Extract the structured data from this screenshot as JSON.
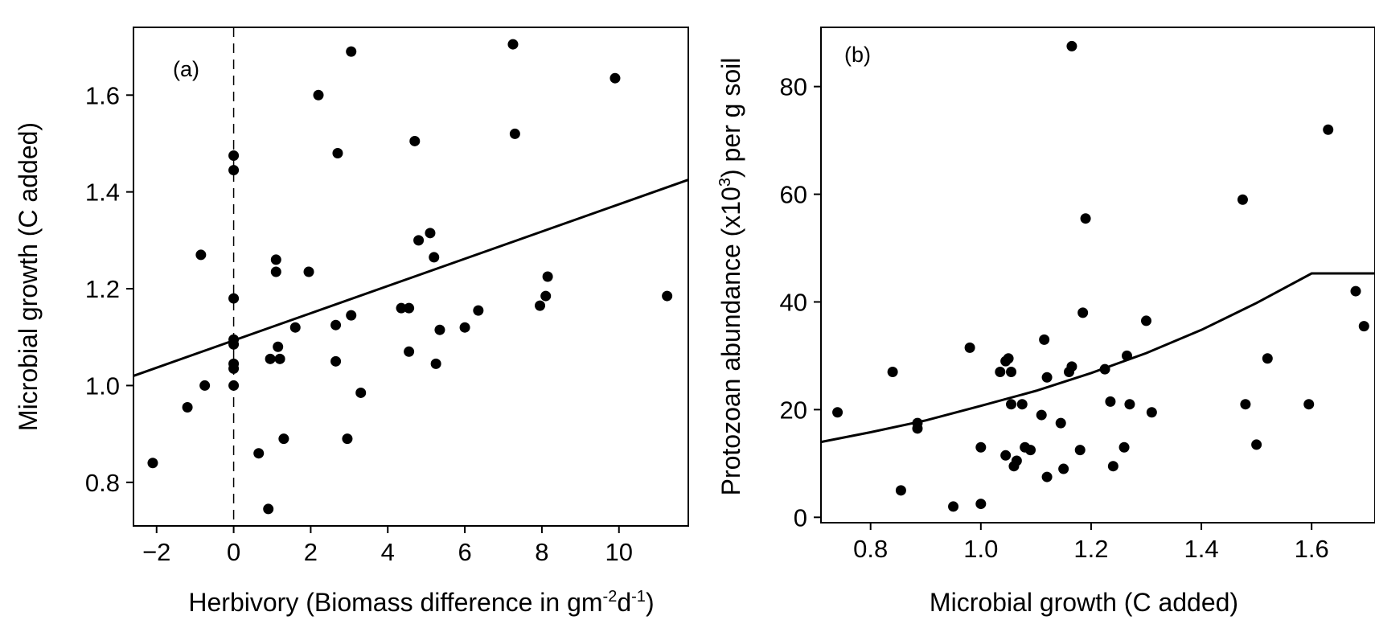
{
  "colors": {
    "ink": "#000000",
    "background": "#ffffff"
  },
  "chart_data": [
    {
      "type": "scatter",
      "panel_label": "(a)",
      "xlabel": "Herbivory (Biomass difference in gm",
      "xlabel_sup1": "-2",
      "xlabel_mid": "d",
      "xlabel_sup2": "-1",
      "xlabel_end": ")",
      "ylabel": "Microbial growth (C added)",
      "xlim": [
        -2.6,
        11.8
      ],
      "ylim": [
        0.71,
        1.74
      ],
      "xticks": [
        -2,
        0,
        2,
        4,
        6,
        8,
        10
      ],
      "xtick_labels": [
        "−2",
        "0",
        "2",
        "4",
        "6",
        "8",
        "10"
      ],
      "yticks": [
        0.8,
        1.0,
        1.2,
        1.4,
        1.6
      ],
      "ytick_labels": [
        "0.8",
        "1.0",
        "1.2",
        "1.4",
        "1.6"
      ],
      "grid": false,
      "reference_line": {
        "axis": "x",
        "value": 0,
        "style": "dashed"
      },
      "fit": {
        "kind": "linear",
        "x": [
          -2.6,
          11.8
        ],
        "y": [
          1.02,
          1.425
        ]
      },
      "points": [
        [
          -2.1,
          0.84
        ],
        [
          -1.2,
          0.955
        ],
        [
          -0.85,
          1.27
        ],
        [
          -0.75,
          1.0
        ],
        [
          0,
          1.475
        ],
        [
          0,
          1.445
        ],
        [
          0,
          1.18
        ],
        [
          0,
          1.095
        ],
        [
          0,
          1.085
        ],
        [
          0,
          1.045
        ],
        [
          0,
          1.035
        ],
        [
          0,
          1.0
        ],
        [
          0.65,
          0.86
        ],
        [
          0.9,
          0.745
        ],
        [
          0.95,
          1.055
        ],
        [
          1.1,
          1.26
        ],
        [
          1.1,
          1.235
        ],
        [
          1.15,
          1.08
        ],
        [
          1.2,
          1.055
        ],
        [
          1.3,
          0.89
        ],
        [
          1.6,
          1.12
        ],
        [
          1.95,
          1.235
        ],
        [
          2.2,
          1.6
        ],
        [
          2.65,
          1.125
        ],
        [
          2.65,
          1.05
        ],
        [
          2.7,
          1.48
        ],
        [
          2.95,
          0.89
        ],
        [
          3.05,
          1.69
        ],
        [
          3.05,
          1.145
        ],
        [
          3.3,
          0.985
        ],
        [
          4.35,
          1.16
        ],
        [
          4.55,
          1.16
        ],
        [
          4.55,
          1.07
        ],
        [
          4.7,
          1.505
        ],
        [
          4.8,
          1.3
        ],
        [
          5.1,
          1.315
        ],
        [
          5.2,
          1.265
        ],
        [
          5.25,
          1.045
        ],
        [
          5.35,
          1.115
        ],
        [
          6.0,
          1.12
        ],
        [
          6.35,
          1.155
        ],
        [
          7.25,
          1.705
        ],
        [
          7.3,
          1.52
        ],
        [
          7.95,
          1.165
        ],
        [
          8.1,
          1.185
        ],
        [
          8.15,
          1.225
        ],
        [
          9.9,
          1.635
        ],
        [
          11.25,
          1.185
        ]
      ]
    },
    {
      "type": "scatter",
      "panel_label": "(b)",
      "xlabel": "Microbial growth (C added)",
      "ylabel": "Protozoan abundance (x10",
      "ylabel_sup": "3",
      "ylabel_end": ") per g soil",
      "xlim": [
        0.71,
        1.715
      ],
      "ylim": [
        -1,
        91
      ],
      "xticks": [
        0.8,
        1.0,
        1.2,
        1.4,
        1.6
      ],
      "xtick_labels": [
        "0.8",
        "1.0",
        "1.2",
        "1.4",
        "1.6"
      ],
      "yticks": [
        0,
        20,
        40,
        60,
        80
      ],
      "ytick_labels": [
        "0",
        "20",
        "40",
        "60",
        "80"
      ],
      "grid": false,
      "fit": {
        "kind": "exponential",
        "x": [
          0.71,
          0.8,
          0.9,
          1.0,
          1.1,
          1.2,
          1.3,
          1.4,
          1.5,
          1.6,
          1.715
        ],
        "y": [
          14.0,
          15.8,
          18.0,
          20.7,
          23.5,
          26.8,
          30.5,
          34.8,
          39.8,
          45.3,
          45.3
        ]
      },
      "points": [
        [
          0.74,
          19.5
        ],
        [
          0.84,
          27.0
        ],
        [
          0.855,
          5.0
        ],
        [
          0.885,
          17.5
        ],
        [
          0.885,
          16.5
        ],
        [
          0.95,
          2.0
        ],
        [
          0.98,
          31.5
        ],
        [
          1.0,
          13.0
        ],
        [
          1.0,
          2.5
        ],
        [
          1.035,
          27.0
        ],
        [
          1.045,
          11.5
        ],
        [
          1.045,
          29.0
        ],
        [
          1.05,
          29.5
        ],
        [
          1.055,
          27.0
        ],
        [
          1.055,
          21.0
        ],
        [
          1.06,
          9.5
        ],
        [
          1.065,
          10.5
        ],
        [
          1.075,
          21.0
        ],
        [
          1.08,
          13.0
        ],
        [
          1.09,
          12.5
        ],
        [
          1.11,
          19.0
        ],
        [
          1.115,
          33.0
        ],
        [
          1.12,
          26.0
        ],
        [
          1.12,
          7.5
        ],
        [
          1.145,
          17.5
        ],
        [
          1.15,
          9.0
        ],
        [
          1.16,
          27.0
        ],
        [
          1.165,
          28.0
        ],
        [
          1.165,
          87.5
        ],
        [
          1.18,
          12.5
        ],
        [
          1.185,
          38.0
        ],
        [
          1.19,
          55.5
        ],
        [
          1.225,
          27.5
        ],
        [
          1.235,
          21.5
        ],
        [
          1.24,
          9.5
        ],
        [
          1.26,
          13.0
        ],
        [
          1.265,
          30.0
        ],
        [
          1.27,
          21.0
        ],
        [
          1.3,
          36.5
        ],
        [
          1.31,
          19.5
        ],
        [
          1.475,
          59.0
        ],
        [
          1.48,
          21.0
        ],
        [
          1.5,
          13.5
        ],
        [
          1.52,
          29.5
        ],
        [
          1.595,
          21.0
        ],
        [
          1.63,
          72.0
        ],
        [
          1.68,
          42.0
        ],
        [
          1.695,
          35.5
        ]
      ]
    }
  ]
}
